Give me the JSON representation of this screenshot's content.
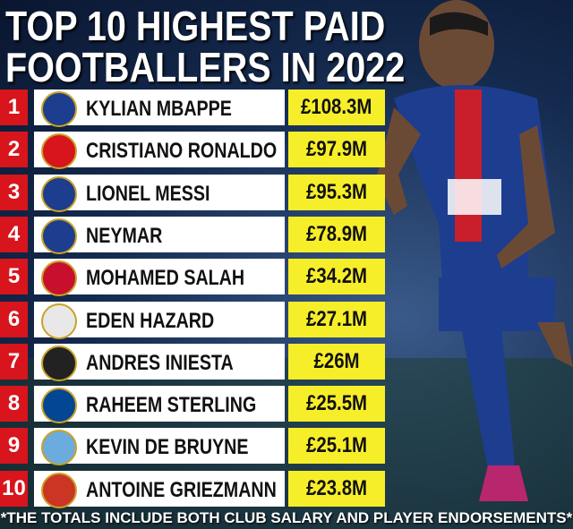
{
  "header": {
    "title_lines": [
      "TOP 10 HIGHEST PAID",
      "FOOTBALLERS IN 2022"
    ]
  },
  "table": {
    "rows": [
      [
        "1",
        "KYLIAN MBAPPE",
        "£108.3M"
      ],
      [
        "2",
        "CRISTIANO RONALDO",
        "£97.9M"
      ],
      [
        "3",
        "LIONEL MESSI",
        "£95.3M"
      ],
      [
        "4",
        "NEYMAR",
        "£78.9M"
      ],
      [
        "5",
        "MOHAMED SALAH",
        "£34.2M"
      ],
      [
        "6",
        "EDEN HAZARD",
        "£27.1M"
      ],
      [
        "7",
        "ANDRES INIESTA",
        "£26M"
      ],
      [
        "8",
        "RAHEEM STERLING",
        "£25.5M"
      ],
      [
        "9",
        "KEVIN DE BRUYNE",
        "£25.1M"
      ],
      [
        "10",
        "ANTOINE GRIEZMANN",
        "£23.8M"
      ]
    ]
  },
  "footnote": "*THE TOTALS INCLUDE BOTH CLUB SALARY AND PLAYER ENDORSEMENTS*"
}
